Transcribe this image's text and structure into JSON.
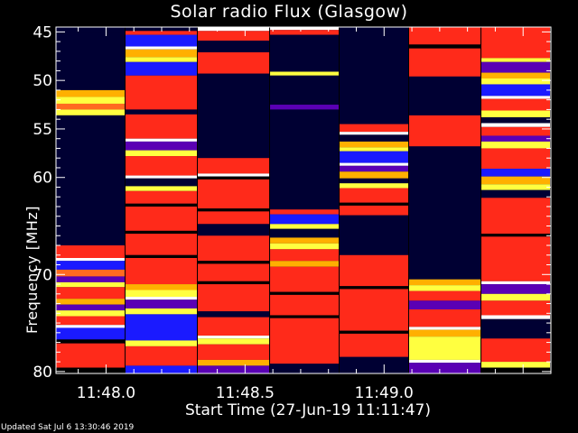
{
  "chart_data": {
    "type": "heatmap",
    "title": "Solar radio Flux (Glasgow)",
    "xlabel": "Start Time (27-Jun-19 11:11:47)",
    "ylabel": "Frequency [MHz]",
    "footer": "Updated Sat Jul  6 13:30:46 2019",
    "x_ticks": [
      {
        "value": 0,
        "label": "11:48.0"
      },
      {
        "value": 0.5,
        "label": "11:48.5"
      },
      {
        "value": 1.0,
        "label": "11:49.0"
      }
    ],
    "y_ticks": [
      {
        "value": 45,
        "label": "45"
      },
      {
        "value": 50,
        "label": "50"
      },
      {
        "value": 55,
        "label": "55"
      },
      {
        "value": 60,
        "label": "60"
      },
      {
        "value": 70,
        "label": "70"
      },
      {
        "value": 80,
        "label": "80"
      }
    ],
    "ylim": [
      44.5,
      80.2
    ],
    "colors": {
      "navy": "#000033",
      "black": "#000000",
      "blue": "#1a1aff",
      "purple": "#5a00b4",
      "red": "#ff2a1a",
      "red_dark": "#e81a10",
      "orange": "#ff6a20",
      "amber": "#ffb000",
      "yellow": "#ffff40",
      "white": "#ffffff"
    },
    "strips": [
      {
        "t0": -0.18,
        "t1": 0.07,
        "bands": [
          [
            "navy",
            45.0,
            51.0
          ],
          [
            "amber",
            51.0,
            51.7
          ],
          [
            "yellow",
            51.7,
            52.4
          ],
          [
            "orange",
            52.4,
            53.0
          ],
          [
            "yellow",
            53.0,
            53.6
          ],
          [
            "navy",
            53.6,
            67.0
          ],
          [
            "red",
            67.0,
            68.3
          ],
          [
            "white",
            68.3,
            68.6
          ],
          [
            "blue",
            68.6,
            69.5
          ],
          [
            "orange",
            69.5,
            70.2
          ],
          [
            "purple",
            70.2,
            70.8
          ],
          [
            "yellow",
            70.8,
            71.3
          ],
          [
            "red",
            71.3,
            72.5
          ],
          [
            "amber",
            72.5,
            73.1
          ],
          [
            "purple",
            73.1,
            73.7
          ],
          [
            "yellow",
            73.7,
            74.3
          ],
          [
            "red",
            74.3,
            75.2
          ],
          [
            "white",
            75.2,
            75.5
          ],
          [
            "blue",
            75.5,
            76.7
          ],
          [
            "black",
            76.7,
            77.1
          ],
          [
            "red",
            77.1,
            79.6
          ],
          [
            "black",
            79.6,
            80.2
          ]
        ]
      },
      {
        "t0": 0.07,
        "t1": 0.33,
        "bands": [
          [
            "red",
            44.9,
            45.3
          ],
          [
            "blue",
            45.3,
            46.5
          ],
          [
            "white",
            46.5,
            46.8
          ],
          [
            "amber",
            46.8,
            47.6
          ],
          [
            "yellow",
            47.6,
            48.1
          ],
          [
            "blue",
            48.1,
            49.5
          ],
          [
            "red",
            49.5,
            53.0
          ],
          [
            "navy",
            53.0,
            53.5
          ],
          [
            "red",
            53.5,
            56.0
          ],
          [
            "white",
            56.0,
            56.3
          ],
          [
            "purple",
            56.3,
            57.2
          ],
          [
            "yellow",
            57.2,
            57.8
          ],
          [
            "red",
            57.8,
            59.8
          ],
          [
            "white",
            59.8,
            60.1
          ],
          [
            "navy",
            60.1,
            60.9
          ],
          [
            "yellow",
            60.9,
            61.4
          ],
          [
            "red",
            61.4,
            62.7
          ],
          [
            "black",
            62.7,
            63.0
          ],
          [
            "red",
            63.0,
            65.5
          ],
          [
            "black",
            65.5,
            65.8
          ],
          [
            "red",
            65.8,
            68.0
          ],
          [
            "black",
            68.0,
            68.3
          ],
          [
            "red",
            68.3,
            71.0
          ],
          [
            "amber",
            71.0,
            71.6
          ],
          [
            "yellow",
            71.6,
            72.3
          ],
          [
            "white",
            72.3,
            72.6
          ],
          [
            "purple",
            72.6,
            73.5
          ],
          [
            "yellow",
            73.5,
            74.1
          ],
          [
            "blue",
            74.1,
            76.8
          ],
          [
            "yellow",
            76.8,
            77.4
          ],
          [
            "red",
            77.4,
            79.4
          ],
          [
            "blue",
            79.4,
            80.2
          ]
        ]
      },
      {
        "t0": 0.33,
        "t1": 0.59,
        "bands": [
          [
            "white",
            44.5,
            44.9
          ],
          [
            "red",
            44.9,
            45.9
          ],
          [
            "navy",
            45.9,
            47.1
          ],
          [
            "red",
            47.1,
            49.3
          ],
          [
            "navy",
            49.3,
            58.0
          ],
          [
            "red",
            58.0,
            59.6
          ],
          [
            "white",
            59.6,
            59.9
          ],
          [
            "black",
            59.9,
            60.2
          ],
          [
            "red",
            60.2,
            63.2
          ],
          [
            "black",
            63.2,
            63.5
          ],
          [
            "red",
            63.5,
            64.8
          ],
          [
            "navy",
            64.8,
            66.0
          ],
          [
            "red",
            66.0,
            68.6
          ],
          [
            "black",
            68.6,
            68.9
          ],
          [
            "red",
            68.9,
            70.7
          ],
          [
            "black",
            70.7,
            71.0
          ],
          [
            "red",
            71.0,
            73.8
          ],
          [
            "navy",
            73.8,
            74.4
          ],
          [
            "red",
            74.4,
            76.3
          ],
          [
            "white",
            76.3,
            76.6
          ],
          [
            "yellow",
            76.6,
            77.2
          ],
          [
            "red",
            77.2,
            78.8
          ],
          [
            "amber",
            78.8,
            79.4
          ],
          [
            "purple",
            79.4,
            80.2
          ]
        ]
      },
      {
        "t0": 0.59,
        "t1": 0.84,
        "bands": [
          [
            "white",
            44.5,
            44.8
          ],
          [
            "red",
            44.8,
            45.3
          ],
          [
            "navy",
            45.3,
            49.1
          ],
          [
            "yellow",
            49.1,
            49.5
          ],
          [
            "navy",
            49.5,
            52.5
          ],
          [
            "purple",
            52.5,
            53.0
          ],
          [
            "navy",
            53.0,
            63.3
          ],
          [
            "red",
            63.3,
            63.8
          ],
          [
            "blue",
            63.8,
            64.8
          ],
          [
            "yellow",
            64.8,
            65.3
          ],
          [
            "navy",
            65.3,
            66.2
          ],
          [
            "amber",
            66.2,
            66.8
          ],
          [
            "yellow",
            66.8,
            67.4
          ],
          [
            "red",
            67.4,
            68.6
          ],
          [
            "amber",
            68.6,
            69.2
          ],
          [
            "red",
            69.2,
            71.8
          ],
          [
            "black",
            71.8,
            72.1
          ],
          [
            "red",
            72.1,
            74.2
          ],
          [
            "black",
            74.2,
            74.5
          ],
          [
            "red",
            74.5,
            79.2
          ],
          [
            "navy",
            79.2,
            80.2
          ]
        ]
      },
      {
        "t0": 0.84,
        "t1": 1.09,
        "bands": [
          [
            "navy",
            44.5,
            54.5
          ],
          [
            "red",
            54.5,
            55.3
          ],
          [
            "white",
            55.3,
            55.6
          ],
          [
            "navy",
            55.6,
            56.3
          ],
          [
            "amber",
            56.3,
            56.9
          ],
          [
            "yellow",
            56.9,
            57.3
          ],
          [
            "blue",
            57.3,
            58.5
          ],
          [
            "white",
            58.5,
            58.8
          ],
          [
            "purple",
            58.8,
            59.4
          ],
          [
            "amber",
            59.4,
            60.1
          ],
          [
            "navy",
            60.1,
            60.6
          ],
          [
            "yellow",
            60.6,
            61.1
          ],
          [
            "red",
            61.1,
            62.6
          ],
          [
            "black",
            62.6,
            62.9
          ],
          [
            "red",
            62.9,
            63.9
          ],
          [
            "navy",
            63.9,
            68.0
          ],
          [
            "red",
            68.0,
            71.2
          ],
          [
            "black",
            71.2,
            71.5
          ],
          [
            "red",
            71.5,
            75.8
          ],
          [
            "black",
            75.8,
            76.1
          ],
          [
            "red",
            76.1,
            78.5
          ],
          [
            "navy",
            78.5,
            80.2
          ]
        ]
      },
      {
        "t0": 1.09,
        "t1": 1.35,
        "bands": [
          [
            "red",
            44.5,
            46.3
          ],
          [
            "black",
            46.3,
            46.7
          ],
          [
            "red",
            46.7,
            49.6
          ],
          [
            "navy",
            49.6,
            53.6
          ],
          [
            "red",
            53.6,
            56.8
          ],
          [
            "navy",
            56.8,
            70.5
          ],
          [
            "amber",
            70.5,
            71.1
          ],
          [
            "yellow",
            71.1,
            71.7
          ],
          [
            "red",
            71.7,
            72.7
          ],
          [
            "purple",
            72.7,
            73.6
          ],
          [
            "red",
            73.6,
            75.4
          ],
          [
            "white",
            75.4,
            75.7
          ],
          [
            "amber",
            75.7,
            76.4
          ],
          [
            "yellow",
            76.4,
            78.8
          ],
          [
            "white",
            78.8,
            79.1
          ],
          [
            "purple",
            79.1,
            80.2
          ]
        ]
      },
      {
        "t0": 1.35,
        "t1": 1.6,
        "bands": [
          [
            "red",
            44.5,
            47.7
          ],
          [
            "yellow",
            47.7,
            48.1
          ],
          [
            "purple",
            48.1,
            49.2
          ],
          [
            "amber",
            49.2,
            49.8
          ],
          [
            "yellow",
            49.8,
            50.4
          ],
          [
            "blue",
            50.4,
            51.6
          ],
          [
            "white",
            51.6,
            51.9
          ],
          [
            "red",
            51.9,
            53.1
          ],
          [
            "yellow",
            53.1,
            53.8
          ],
          [
            "navy",
            53.8,
            54.4
          ],
          [
            "white",
            54.4,
            54.8
          ],
          [
            "red",
            54.8,
            55.7
          ],
          [
            "purple",
            55.7,
            56.3
          ],
          [
            "yellow",
            56.3,
            57.0
          ],
          [
            "red",
            57.0,
            59.1
          ],
          [
            "blue",
            59.1,
            59.9
          ],
          [
            "amber",
            59.9,
            60.7
          ],
          [
            "yellow",
            60.7,
            61.3
          ],
          [
            "navy",
            61.3,
            62.1
          ],
          [
            "red",
            62.1,
            65.8
          ],
          [
            "black",
            65.8,
            66.1
          ],
          [
            "red",
            66.1,
            70.7
          ],
          [
            "white",
            70.7,
            71.0
          ],
          [
            "purple",
            71.0,
            72.0
          ],
          [
            "yellow",
            72.0,
            72.7
          ],
          [
            "red",
            72.7,
            74.2
          ],
          [
            "white",
            74.2,
            74.6
          ],
          [
            "navy",
            74.6,
            76.6
          ],
          [
            "red",
            76.6,
            79.0
          ],
          [
            "yellow",
            79.0,
            79.6
          ],
          [
            "black",
            79.6,
            80.2
          ]
        ]
      }
    ]
  }
}
